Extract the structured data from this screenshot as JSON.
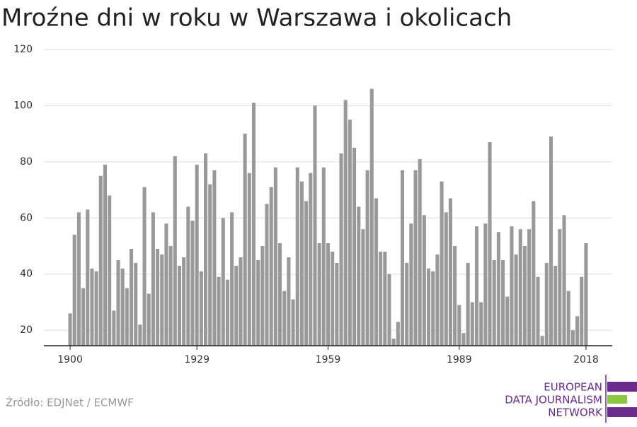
{
  "chart_data": {
    "type": "bar",
    "title": "Mroźne dni w roku w Warszawa i okolicach",
    "x": [
      1900,
      1901,
      1902,
      1903,
      1904,
      1905,
      1906,
      1907,
      1908,
      1909,
      1910,
      1911,
      1912,
      1913,
      1914,
      1915,
      1916,
      1917,
      1918,
      1919,
      1920,
      1921,
      1922,
      1923,
      1924,
      1925,
      1926,
      1927,
      1928,
      1929,
      1930,
      1931,
      1932,
      1933,
      1934,
      1935,
      1936,
      1937,
      1938,
      1939,
      1940,
      1941,
      1942,
      1943,
      1944,
      1945,
      1946,
      1947,
      1948,
      1949,
      1950,
      1951,
      1952,
      1953,
      1954,
      1955,
      1956,
      1957,
      1958,
      1959,
      1960,
      1961,
      1962,
      1963,
      1964,
      1965,
      1966,
      1967,
      1968,
      1969,
      1970,
      1971,
      1972,
      1973,
      1974,
      1975,
      1976,
      1977,
      1978,
      1979,
      1980,
      1981,
      1982,
      1983,
      1984,
      1985,
      1986,
      1987,
      1988,
      1989,
      1990,
      1991,
      1992,
      1993,
      1994,
      1995,
      1996,
      1997,
      1998,
      1999,
      2000,
      2001,
      2002,
      2003,
      2004,
      2005,
      2006,
      2007,
      2008,
      2009,
      2010,
      2011,
      2012,
      2013,
      2014,
      2015,
      2016,
      2017,
      2018
    ],
    "values": [
      26,
      54,
      62,
      35,
      63,
      42,
      41,
      75,
      79,
      68,
      27,
      45,
      42,
      35,
      49,
      44,
      22,
      71,
      33,
      62,
      49,
      47,
      58,
      50,
      82,
      43,
      46,
      64,
      59,
      79,
      41,
      83,
      72,
      77,
      39,
      60,
      38,
      62,
      43,
      46,
      90,
      76,
      101,
      45,
      50,
      65,
      71,
      78,
      51,
      34,
      46,
      31,
      78,
      73,
      66,
      76,
      100,
      51,
      78,
      51,
      48,
      44,
      83,
      102,
      95,
      85,
      64,
      56,
      77,
      106,
      67,
      48,
      48,
      40,
      17,
      23,
      77,
      44,
      58,
      77,
      81,
      61,
      42,
      41,
      47,
      73,
      62,
      67,
      50,
      29,
      19,
      44,
      30,
      57,
      30,
      58,
      87,
      45,
      55,
      45,
      32,
      57,
      47,
      56,
      50,
      56,
      66,
      39,
      18,
      44,
      89,
      43,
      56,
      61,
      34,
      20,
      25,
      39,
      51
    ],
    "color": "#999999",
    "xlim": [
      1894,
      2024
    ],
    "xticks": [
      1900,
      1929,
      1959,
      1989,
      2018
    ],
    "ylim": [
      14.5,
      120
    ],
    "yticks": [
      20,
      40,
      60,
      80,
      100,
      120
    ],
    "grid": true
  },
  "source": "Źródło: EDJNet / ECMWF",
  "logo": [
    "EUROPEAN",
    "DATA JOURNALISM",
    "NETWORK"
  ]
}
